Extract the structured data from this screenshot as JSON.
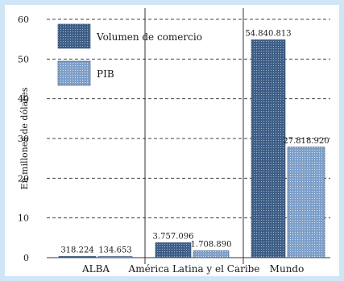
{
  "chart_data": {
    "type": "bar",
    "ylabel": "En millones de dólares",
    "ylim": [
      0,
      60
    ],
    "yticks": [
      0,
      10,
      20,
      30,
      40,
      50,
      60
    ],
    "categories": [
      "ALBA",
      "América Latina y el Caribe",
      "Mundo"
    ],
    "series": [
      {
        "name": "Volumen de comercio",
        "values": [
          0.318224,
          3.757096,
          54.840813
        ],
        "labels": [
          "318.224",
          "3.757.096",
          "54.840.813"
        ],
        "color": "#4d6a90"
      },
      {
        "name": "PIB",
        "values": [
          0.134653,
          1.70889,
          27.81892
        ],
        "labels": [
          "134.653",
          "1.708.890",
          "27.818.920"
        ],
        "color": "#7fa0c8"
      }
    ],
    "grid": "dashed horizontal",
    "legend": "top-left"
  }
}
